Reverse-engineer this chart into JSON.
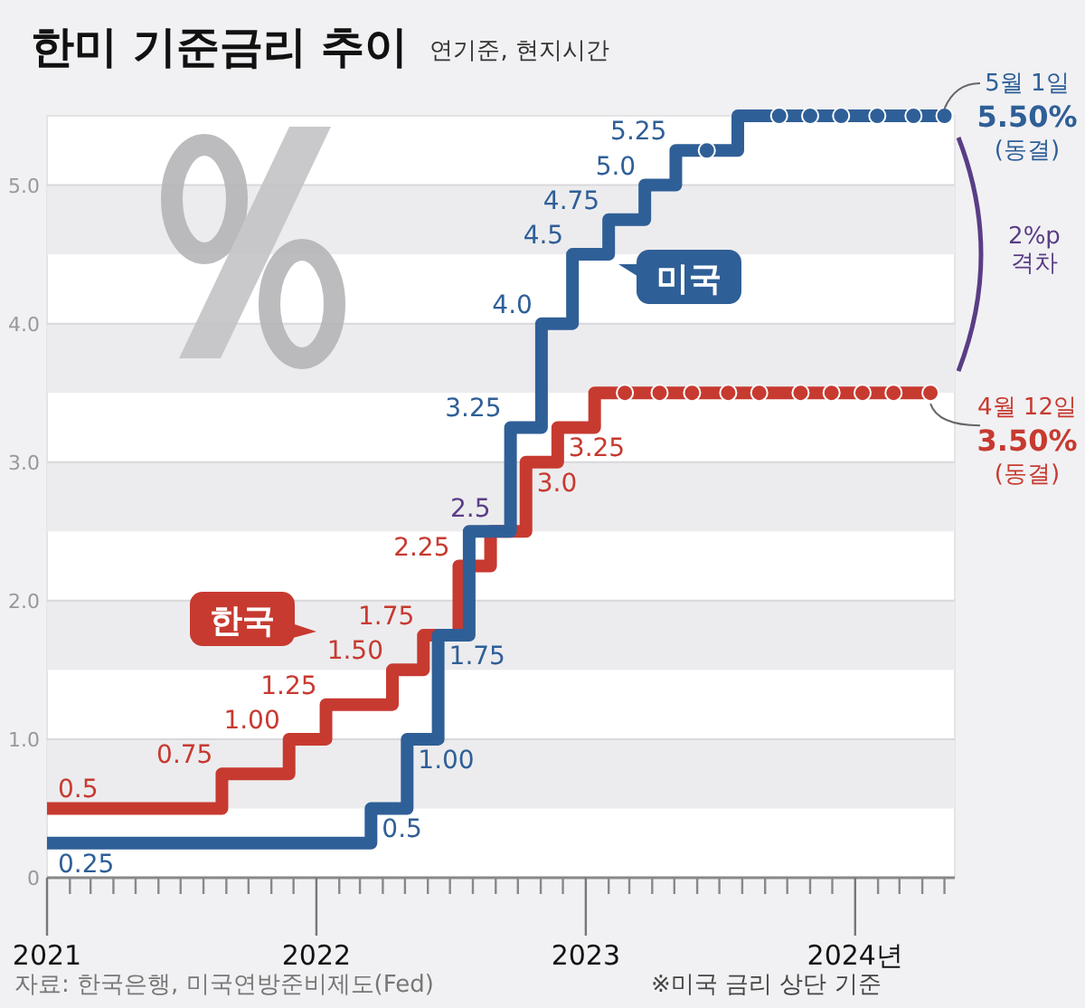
{
  "chart_data": {
    "type": "step",
    "title": "한미 기준금리 추이",
    "subtitle": "연기준, 현지시간",
    "xlim": [
      "2021-01-01",
      "2024-05-15"
    ],
    "xticks": [
      {
        "value": "2021-01-01",
        "label": "2021"
      },
      {
        "value": "2021-02-01",
        "label": null
      },
      {
        "value": "2021-03-01",
        "label": null
      },
      {
        "value": "2021-04-01",
        "label": null
      },
      {
        "value": "2021-05-01",
        "label": null
      },
      {
        "value": "2021-06-01",
        "label": null
      },
      {
        "value": "2021-07-01",
        "label": null
      },
      {
        "value": "2021-08-01",
        "label": null
      },
      {
        "value": "2021-09-01",
        "label": null
      },
      {
        "value": "2021-10-01",
        "label": null
      },
      {
        "value": "2021-11-01",
        "label": null
      },
      {
        "value": "2021-12-01",
        "label": null
      },
      {
        "value": "2022-01-01",
        "label": "2022"
      },
      {
        "value": "2022-02-01",
        "label": null
      },
      {
        "value": "2022-03-01",
        "label": null
      },
      {
        "value": "2022-04-01",
        "label": null
      },
      {
        "value": "2022-05-01",
        "label": null
      },
      {
        "value": "2022-06-01",
        "label": null
      },
      {
        "value": "2022-07-01",
        "label": null
      },
      {
        "value": "2022-08-01",
        "label": null
      },
      {
        "value": "2022-09-01",
        "label": null
      },
      {
        "value": "2022-10-01",
        "label": null
      },
      {
        "value": "2022-11-01",
        "label": null
      },
      {
        "value": "2022-12-01",
        "label": null
      },
      {
        "value": "2023-01-01",
        "label": "2023"
      },
      {
        "value": "2023-02-01",
        "label": null
      },
      {
        "value": "2023-03-01",
        "label": null
      },
      {
        "value": "2023-04-01",
        "label": null
      },
      {
        "value": "2023-05-01",
        "label": null
      },
      {
        "value": "2023-06-01",
        "label": null
      },
      {
        "value": "2023-07-01",
        "label": null
      },
      {
        "value": "2023-08-01",
        "label": null
      },
      {
        "value": "2023-09-01",
        "label": null
      },
      {
        "value": "2023-10-01",
        "label": null
      },
      {
        "value": "2023-11-01",
        "label": null
      },
      {
        "value": "2023-12-01",
        "label": null
      },
      {
        "value": "2024-01-01",
        "label": "2024년"
      },
      {
        "value": "2024-02-01",
        "label": null
      },
      {
        "value": "2024-03-01",
        "label": null
      },
      {
        "value": "2024-04-01",
        "label": null
      },
      {
        "value": "2024-05-01",
        "label": null
      }
    ],
    "ylim": [
      0,
      5.5
    ],
    "yticks": [
      0,
      {
        "value": 1,
        "label": "1.0"
      },
      {
        "value": 2,
        "label": "2.0"
      },
      {
        "value": 3,
        "label": "3.0"
      },
      {
        "value": 4,
        "label": "4.0"
      },
      {
        "value": 5,
        "label": "5.0"
      }
    ],
    "grid": "y",
    "bands": [
      {
        "axis": "y",
        "from": 0.5,
        "to": 1,
        "color": "#ececee"
      },
      {
        "axis": "y",
        "from": 1.5,
        "to": 2,
        "color": "#ececee"
      },
      {
        "axis": "y",
        "from": 2.5,
        "to": 3,
        "color": "#ececee"
      },
      {
        "axis": "y",
        "from": 3.5,
        "to": 4,
        "color": "#ececee"
      },
      {
        "axis": "y",
        "from": 4.5,
        "to": 5,
        "color": "#ececee"
      }
    ],
    "series": [
      {
        "name": "미국",
        "type": "step",
        "color": "#2f5f97",
        "x": [
          "2021-01-01",
          "2022-03-16",
          "2022-05-04",
          "2022-06-15",
          "2022-07-27",
          "2022-09-21",
          "2022-11-02",
          "2022-12-14",
          "2023-02-01",
          "2023-03-22",
          "2023-05-03",
          "2023-07-26",
          "2024-05-01"
        ],
        "values": [
          0.25,
          0.5,
          1.0,
          1.75,
          2.5,
          3.25,
          4.0,
          4.5,
          4.75,
          5.0,
          5.25,
          5.5,
          5.5
        ],
        "value_labels": [
          "0.25",
          "0.5",
          "1.00",
          "1.75",
          null,
          "3.25",
          "4.0",
          "4.5",
          "4.75",
          "5.0",
          "5.25",
          null,
          null
        ]
      },
      {
        "name": "한국",
        "type": "step",
        "color": "#c73a30",
        "x": [
          "2021-01-01",
          "2021-08-26",
          "2021-11-25",
          "2022-01-14",
          "2022-04-14",
          "2022-05-26",
          "2022-07-13",
          "2022-08-25",
          "2022-10-12",
          "2022-11-24",
          "2023-01-13",
          "2024-04-12"
        ],
        "values": [
          0.5,
          0.75,
          1.0,
          1.25,
          1.5,
          1.75,
          2.25,
          2.5,
          3.0,
          3.25,
          3.5,
          3.5
        ],
        "value_labels": [
          "0.5",
          "0.75",
          "1.00",
          "1.25",
          "1.50",
          "1.75",
          "2.25",
          null,
          "3.0",
          "3.25",
          null,
          null
        ]
      },
      {
        "type": "scatter",
        "color": "#2f5f97",
        "x": [
          "2023-06-14",
          "2023-09-20",
          "2023-11-01",
          "2023-12-13",
          "2024-01-31",
          "2024-03-20",
          "2024-05-01"
        ],
        "values": [
          5.25,
          5.5,
          5.5,
          5.5,
          5.5,
          5.5,
          5.5
        ]
      },
      {
        "type": "scatter",
        "color": "#c73a30",
        "x": [
          "2023-02-23",
          "2023-04-11",
          "2023-05-25",
          "2023-07-13",
          "2023-08-24",
          "2023-10-19",
          "2023-11-30",
          "2024-01-11",
          "2024-02-22",
          "2024-04-12"
        ],
        "values": [
          3.5,
          3.5,
          3.5,
          3.5,
          3.5,
          3.5,
          3.5,
          3.5,
          3.5,
          3.5
        ]
      }
    ],
    "annotations": [
      {
        "text": "5월 1일\n5.50%\n(동결)",
        "x": "2024-05-01",
        "y": 5.5
      },
      {
        "text": "4월 12일\n3.50%\n(동결)",
        "x": "2024-04-12",
        "y": 3.5
      },
      {
        "text": "2.5",
        "x": "2022-08-25",
        "y": 2.5
      },
      "2%p\n격차",
      "자료: 한국은행, 미국연방준비제도(Fed)",
      "※미국 금리 상단 기준"
    ]
  }
}
